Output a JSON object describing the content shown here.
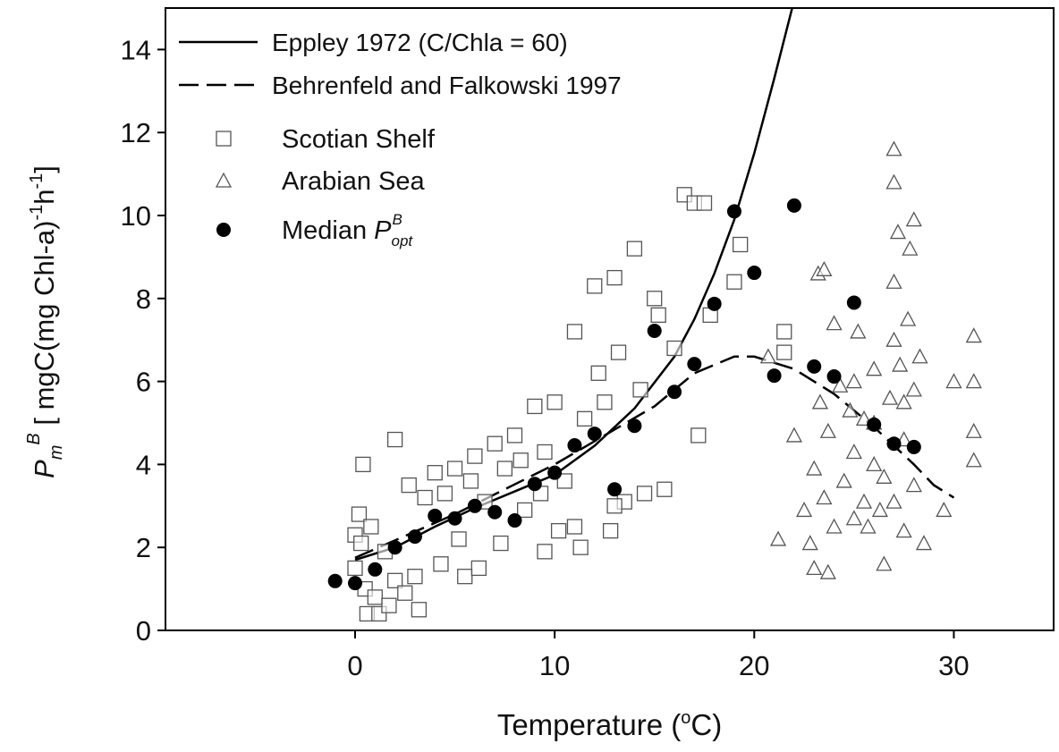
{
  "chart_data": {
    "type": "scatter",
    "xlabel_parts": [
      "Temperature (",
      "o",
      "C)"
    ],
    "ylabel_parts": [
      "P",
      "m",
      "B",
      " [ mgC(mg Chl-a)",
      "-1",
      "h",
      "-1",
      "]"
    ],
    "xlim": [
      -9.5,
      35
    ],
    "ylim": [
      0,
      15
    ],
    "xticks": [
      0,
      10,
      20,
      30
    ],
    "yticks": [
      0,
      2,
      4,
      6,
      8,
      10,
      12,
      14
    ],
    "series": [
      {
        "name": "Eppley 1972 (C/Chla = 60)",
        "color": "#000000",
        "marker": "none",
        "linestyle": "solid",
        "x": [
          0,
          2,
          4,
          6,
          8,
          10,
          12,
          14,
          16,
          17,
          18,
          19,
          20,
          21,
          21.9
        ],
        "values": [
          1.7,
          2.0,
          2.5,
          2.95,
          3.35,
          3.75,
          4.45,
          5.35,
          6.6,
          7.5,
          8.6,
          9.9,
          11.5,
          13.3,
          15
        ]
      },
      {
        "name": "Behrenfeld and Falkowski 1997",
        "color": "#000000",
        "marker": "none",
        "linestyle": "dashed",
        "x": [
          0,
          5,
          10,
          15,
          17,
          19,
          20,
          22,
          24,
          26,
          28,
          29,
          30
        ],
        "values": [
          1.75,
          2.8,
          4.0,
          5.4,
          6.2,
          6.6,
          6.6,
          6.3,
          5.7,
          4.9,
          4.0,
          3.5,
          3.2
        ]
      },
      {
        "name": "Scotian Shelf",
        "color": "#555555",
        "marker": "square",
        "linestyle": "none",
        "x": [
          0,
          0,
          0.2,
          0.3,
          0.4,
          0.5,
          0.6,
          0.8,
          1,
          1.2,
          1.5,
          1.7,
          2,
          2,
          2.5,
          2.7,
          3,
          3.2,
          3.5,
          4,
          4.3,
          4.5,
          5,
          5.2,
          5.5,
          5.8,
          6,
          6.2,
          6.5,
          7,
          7.3,
          7.5,
          8,
          8.3,
          8.5,
          9,
          9.3,
          9.5,
          10,
          10.2,
          10.5,
          11,
          11.3,
          11.5,
          12,
          12.2,
          12.5,
          12.8,
          13,
          13.2,
          13.5,
          14,
          14.3,
          14.5,
          15,
          15.2,
          15.5,
          16,
          16.5,
          17,
          17.5,
          17.2,
          17.8,
          19.3,
          19,
          21.5,
          21.5,
          13,
          11,
          9.5
        ],
        "values": [
          2.3,
          1.5,
          2.8,
          2.1,
          4.0,
          1.0,
          0.4,
          2.5,
          0.8,
          0.4,
          1.9,
          0.6,
          1.2,
          4.6,
          0.9,
          3.5,
          1.3,
          0.5,
          3.2,
          3.8,
          1.6,
          3.3,
          3.9,
          2.2,
          1.3,
          3.6,
          4.2,
          1.5,
          3.1,
          4.5,
          2.1,
          3.9,
          4.7,
          4.1,
          2.9,
          5.4,
          3.3,
          1.9,
          5.5,
          2.4,
          3.6,
          7.2,
          2.0,
          5.1,
          8.3,
          6.2,
          5.5,
          2.4,
          8.5,
          6.7,
          3.1,
          9.2,
          5.8,
          3.3,
          8.0,
          7.6,
          3.4,
          6.8,
          10.5,
          10.3,
          10.3,
          4.7,
          7.6,
          9.3,
          8.4,
          7.2,
          6.7,
          3.0,
          2.5,
          4.3
        ]
      },
      {
        "name": "Arabian Sea",
        "color": "#555555",
        "marker": "triangle",
        "linestyle": "none",
        "x": [
          20.7,
          21.2,
          22,
          22.5,
          22.8,
          23,
          23,
          23.2,
          23.3,
          23.5,
          23.5,
          23.7,
          23.7,
          24,
          24,
          24.3,
          24.5,
          25,
          25,
          25,
          25.2,
          25.5,
          25.5,
          25.7,
          26,
          26,
          26.3,
          26.5,
          26.5,
          26.8,
          27,
          27,
          27,
          27,
          27,
          27.2,
          27.3,
          27.5,
          27.5,
          27.7,
          27.8,
          28,
          28,
          28,
          28.3,
          28.5,
          29.5,
          30,
          31,
          31,
          31,
          31,
          24.8,
          26,
          27.5
        ],
        "values": [
          6.6,
          2.2,
          4.7,
          2.9,
          2.1,
          1.5,
          3.9,
          8.6,
          5.5,
          8.7,
          3.2,
          1.4,
          4.8,
          2.5,
          7.4,
          5.9,
          3.6,
          6.0,
          2.7,
          4.3,
          7.2,
          3.1,
          5.1,
          2.5,
          4.0,
          6.3,
          2.9,
          1.6,
          3.7,
          5.6,
          11.6,
          10.8,
          8.4,
          7.0,
          3.1,
          9.6,
          6.4,
          4.6,
          2.4,
          7.5,
          9.2,
          9.9,
          5.8,
          3.5,
          6.6,
          2.1,
          2.9,
          6.0,
          7.1,
          6.0,
          4.8,
          4.1,
          5.3,
          5.0,
          5.5
        ]
      },
      {
        "name": "Median ",
        "name_symbol": [
          "P",
          "opt",
          "B"
        ],
        "color": "#000000",
        "marker": "circle",
        "linestyle": "none",
        "x": [
          -1,
          0,
          1,
          2,
          3,
          4,
          5,
          6,
          7,
          8,
          9,
          10,
          11,
          12,
          13,
          14,
          15,
          16,
          17,
          18,
          19,
          20,
          21,
          22,
          23,
          24,
          25,
          26,
          27,
          28
        ],
        "values": [
          1.19,
          1.14,
          1.47,
          2.0,
          2.26,
          2.76,
          2.7,
          3.0,
          2.85,
          2.65,
          3.53,
          3.8,
          4.46,
          4.74,
          3.4,
          4.93,
          7.22,
          5.75,
          6.42,
          7.87,
          10.1,
          8.62,
          6.14,
          10.24,
          6.36,
          6.12,
          7.9,
          4.96,
          4.5,
          4.42
        ]
      }
    ]
  }
}
